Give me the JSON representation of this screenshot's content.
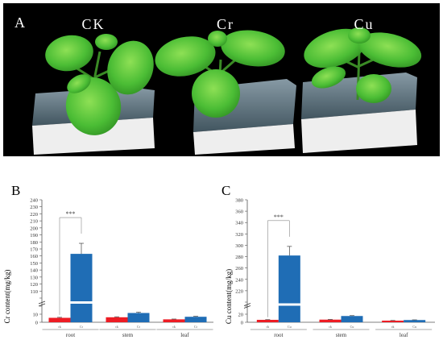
{
  "photo": {
    "panel_label": "A",
    "treatments": [
      "CK",
      "Cr",
      "Cu"
    ]
  },
  "chart_data": [
    {
      "type": "bar",
      "panel_label": "B",
      "ylabel": "Cr content(mg/kg)",
      "categories": [
        "root",
        "stem",
        "leaf"
      ],
      "legend_labels": [
        "ck",
        "Cr"
      ],
      "series": [
        {
          "name": "ck",
          "values": [
            5.5,
            6.2,
            3.6
          ],
          "errors": [
            0.6,
            0.6,
            0.4
          ],
          "color": "#ed1c24"
        },
        {
          "name": "Cr",
          "values": [
            163,
            11.5,
            6.8
          ],
          "errors": [
            15,
            1.0,
            0.6
          ],
          "color": "#1f6db5"
        }
      ],
      "broken_axis": {
        "lower": [
          0,
          20
        ],
        "upper": [
          100,
          240
        ]
      },
      "yticks": [
        0,
        10,
        20,
        100,
        110,
        120,
        130,
        140,
        150,
        160,
        170,
        180,
        190,
        200,
        210,
        220,
        230,
        240
      ],
      "yticks_labeled": [
        "0",
        "10",
        "",
        "",
        "110",
        "120",
        "130",
        "140",
        "150",
        "160",
        "170",
        "180",
        "190",
        "200",
        "210",
        "220",
        "230",
        "240"
      ],
      "significance": {
        "label": "***",
        "category": "root"
      }
    },
    {
      "type": "bar",
      "panel_label": "C",
      "ylabel": "Cu content(mg/kg)",
      "categories": [
        "root",
        "stem",
        "leaf"
      ],
      "legend_labels": [
        "ck",
        "Cu"
      ],
      "series": [
        {
          "name": "ck",
          "values": [
            6.0,
            6.5,
            4.0
          ],
          "errors": [
            0.5,
            0.6,
            0.4
          ],
          "color": "#ed1c24"
        },
        {
          "name": "Cu",
          "values": [
            282,
            15.5,
            5.5
          ],
          "errors": [
            16,
            1.0,
            0.5
          ],
          "color": "#1f6db5"
        }
      ],
      "broken_axis": {
        "lower": [
          0,
          40
        ],
        "upper": [
          200,
          380
        ]
      },
      "yticks": [
        0,
        20,
        40,
        200,
        220,
        240,
        260,
        280,
        300,
        320,
        340,
        360,
        380
      ],
      "yticks_labeled": [
        "0",
        "20",
        "",
        "",
        "220",
        "240",
        "260",
        "280",
        "300",
        "320",
        "340",
        "360",
        "380"
      ],
      "significance": {
        "label": "***",
        "category": "root"
      }
    }
  ],
  "colors": {
    "ck_bar": "#ed1c24",
    "treatment_bar": "#1f6db5",
    "photo_background": "#000000",
    "leaf": "#4fbf3a",
    "foam": "#eeeeee"
  }
}
